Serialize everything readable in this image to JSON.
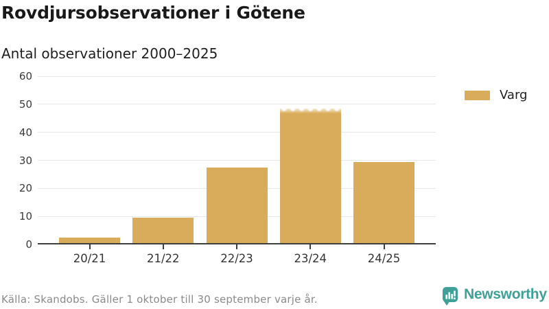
{
  "header": {
    "title": "Rovdjursobservationer i Götene",
    "subtitle": "Antal observationer 2000–2025"
  },
  "chart_data": {
    "type": "bar",
    "title": "Rovdjursobservationer i Götene",
    "subtitle": "Antal observationer 2000–2025",
    "categories": [
      "20/21",
      "21/22",
      "22/23",
      "23/24",
      "24/25"
    ],
    "series": [
      {
        "name": "Varg",
        "values": [
          2,
          9,
          27,
          48,
          29
        ],
        "color": "#d9ac5b"
      }
    ],
    "ylim": [
      0,
      60
    ],
    "yticks": [
      0,
      10,
      20,
      30,
      40,
      50,
      60
    ],
    "xlabel": "",
    "ylabel": "",
    "grid": true,
    "legend_position": "right",
    "faded_top_category": "23/24",
    "gridline_color": "#e7e7e7",
    "axis_color": "#3e3e3e"
  },
  "legend": {
    "items": [
      {
        "label": "Varg",
        "color": "#d9ac5b"
      }
    ]
  },
  "footer": {
    "source": "Källa: Skandobs. Gäller 1 oktober till 30 september varje år."
  },
  "branding": {
    "name": "Newsworthy",
    "color": "#3fa097",
    "icon": "newsworthy-chart-bubble-icon"
  }
}
